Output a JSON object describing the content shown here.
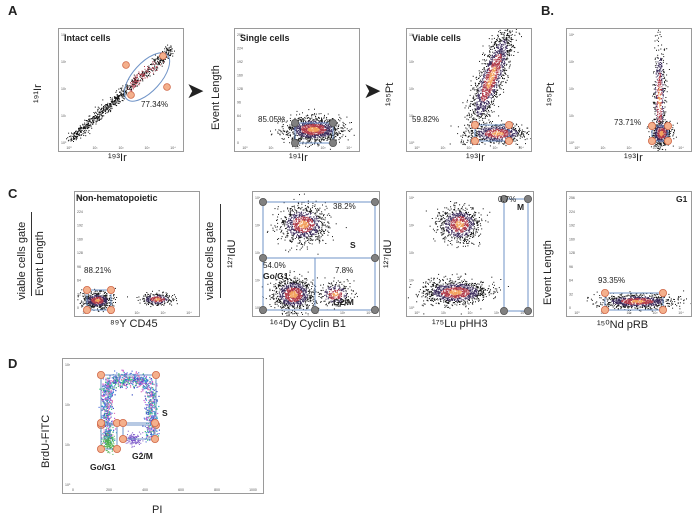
{
  "colors": {
    "gate": "#6f93c7",
    "handle_fill": "#f4b08c",
    "handle_stroke": "#d0694a",
    "dark_handle": "#808080",
    "density_hot": "#f2a05a",
    "density_mid": "#b03a4a",
    "density_low": "#3a2a5a"
  },
  "panel_letters": {
    "A": "A",
    "B": "B.",
    "C": "C",
    "D": "D"
  },
  "arrows": [
    "➤",
    "➤"
  ],
  "panels": {
    "a1": {
      "title": "Intact cells",
      "pct": "77.34%",
      "ylabel": "¹⁹¹Ir",
      "xlabel": "¹⁹³Ir",
      "yticks": [
        "10⁴",
        "10³",
        "10²",
        "10¹",
        "10⁰"
      ],
      "xticks": [
        "10⁰",
        "10¹",
        "10²",
        "10³",
        "10⁴"
      ]
    },
    "a2": {
      "title": "Single cells",
      "pct": "85.05%",
      "ylabel": "Event Length",
      "xlabel": "¹⁹¹Ir",
      "yticks": [
        "256",
        "224",
        "192",
        "160",
        "128",
        "96",
        "64",
        "32",
        "0"
      ],
      "xticks": [
        "10⁰",
        "10¹",
        "10²",
        "10³",
        "10⁴"
      ]
    },
    "a3": {
      "title": "Viable cells",
      "pct": "59.82%",
      "ylabel": "¹⁹⁵Pt",
      "xlabel": "¹⁹³Ir",
      "yticks": [
        "10⁴",
        "10³",
        "10²",
        "10¹",
        "10⁰"
      ],
      "xticks": [
        "10⁰",
        "10¹",
        "10²",
        "10³",
        "10⁴"
      ]
    },
    "b1": {
      "title": "",
      "pct": "73.71%",
      "ylabel": "¹⁹⁵Pt",
      "xlabel": "¹⁹³Ir",
      "yticks": [
        "10⁴",
        "10³",
        "10²",
        "10¹",
        "10⁰"
      ],
      "xticks": [
        "10⁰",
        "10¹",
        "10²",
        "10³",
        "10⁴"
      ]
    },
    "c1": {
      "title": "Non-hematopoietic",
      "pct": "88.21%",
      "ylabel_top": "viable cells gate",
      "ylabel": "Event Length",
      "xlabel": "⁸⁹Y CD45",
      "yticks": [
        "256",
        "224",
        "192",
        "160",
        "128",
        "96",
        "64",
        "32",
        "0"
      ],
      "xticks": [
        "10⁰",
        "10¹",
        "10²",
        "10³",
        "10⁴"
      ]
    },
    "c2": {
      "ylabel_top": "viable cells gate",
      "ylabel": "¹²⁷IdU",
      "xlabel": "¹⁶⁴Dy Cyclin B1",
      "pct_s": "38.2%",
      "gate_s": "S",
      "pct_g0": "54.0%",
      "gate_g0": "Go/G1",
      "pct_g2": "7.8%",
      "gate_g2": "G2/M",
      "yticks": [
        "10⁴",
        "10³",
        "10²",
        "10¹",
        "10⁰"
      ],
      "xticks": [
        "10⁰",
        "10¹",
        "10²",
        "10³",
        "10⁴"
      ]
    },
    "c3": {
      "ylabel": "¹²⁷IdU",
      "xlabel": "¹⁷⁵Lu pHH3",
      "pct_m": "0.7%",
      "gate_m": "M",
      "yticks": [
        "10⁴",
        "10³",
        "10²",
        "10¹",
        "10⁰"
      ],
      "xticks": [
        "10⁰",
        "10¹",
        "10²",
        "10³",
        "10⁴"
      ]
    },
    "c4": {
      "gate_g1": "G1",
      "pct": "93.35%",
      "ylabel": "Event Length",
      "xlabel": "¹⁵⁰Nd pRB",
      "yticks": [
        "256",
        "224",
        "192",
        "160",
        "128",
        "96",
        "64",
        "32",
        "0"
      ],
      "xticks": [
        "10⁰",
        "10¹",
        "10²",
        "10³",
        "10⁴"
      ]
    },
    "d1": {
      "ylabel": "BrdU-FITC",
      "xlabel": "PI",
      "gate_s": "S",
      "gate_g0": "Go/G1",
      "gate_g2": "G2/M",
      "yticks": [
        "10³",
        "10²",
        "10¹",
        "10⁰"
      ],
      "xticks": [
        "0",
        "200",
        "400",
        "600",
        "800",
        "1000"
      ]
    }
  },
  "chart_data": [
    {
      "type": "scatter",
      "title": "Intact cells",
      "xlabel": "¹⁹³Ir",
      "ylabel": "¹⁹¹Ir",
      "gated_percent": 77.34,
      "scale": "log"
    },
    {
      "type": "scatter",
      "title": "Single cells",
      "xlabel": "¹⁹¹Ir",
      "ylabel": "Event Length",
      "gated_percent": 85.05
    },
    {
      "type": "scatter",
      "title": "Viable cells",
      "xlabel": "¹⁹³Ir",
      "ylabel": "¹⁹⁵Pt",
      "gated_percent": 59.82
    },
    {
      "type": "scatter",
      "xlabel": "¹⁹³Ir",
      "ylabel": "¹⁹⁵Pt",
      "gated_percent": 73.71
    },
    {
      "type": "scatter",
      "title": "Non-hematopoietic",
      "xlabel": "⁸⁹Y CD45",
      "ylabel": "Event Length",
      "gated_percent": 88.21
    },
    {
      "type": "scatter",
      "xlabel": "¹⁶⁴Dy Cyclin B1",
      "ylabel": "¹²⁷IdU",
      "gates": [
        {
          "name": "S",
          "percent": 38.2
        },
        {
          "name": "Go/G1",
          "percent": 54.0
        },
        {
          "name": "G2/M",
          "percent": 7.8
        }
      ]
    },
    {
      "type": "scatter",
      "xlabel": "¹⁷⁵Lu pHH3",
      "ylabel": "¹²⁷IdU",
      "gates": [
        {
          "name": "M",
          "percent": 0.7
        }
      ]
    },
    {
      "type": "scatter",
      "xlabel": "¹⁵⁰Nd pRB",
      "ylabel": "Event Length",
      "gates": [
        {
          "name": "G1",
          "percent": 93.35
        }
      ]
    },
    {
      "type": "scatter",
      "xlabel": "PI",
      "ylabel": "BrdU-FITC",
      "xlim": [
        0,
        1000
      ],
      "gates": [
        {
          "name": "S"
        },
        {
          "name": "Go/G1"
        },
        {
          "name": "G2/M"
        }
      ]
    }
  ]
}
